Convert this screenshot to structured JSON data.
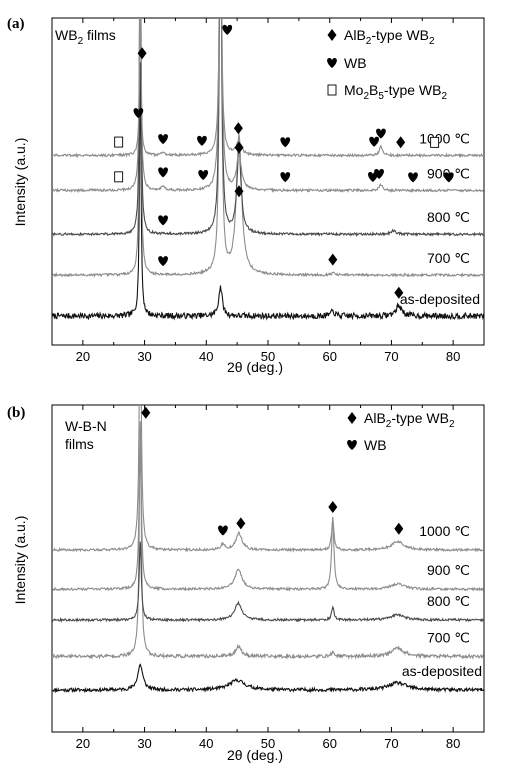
{
  "chart_data": [
    {
      "type": "line",
      "panel_label": "(a)",
      "sample_label": "WB₂ films",
      "xlabel": "2θ (deg.)",
      "ylabel": "Intensity (a.u.)",
      "xlim": [
        15,
        85
      ],
      "xticks": [
        20,
        30,
        40,
        50,
        60,
        70,
        80
      ],
      "tick_labels": [
        "20",
        "30",
        "40",
        "50",
        "60",
        "70",
        "80"
      ],
      "legend_position": "top-right",
      "legend": [
        {
          "marker": "diamond",
          "label": "AlB₂-type WB₂"
        },
        {
          "marker": "heart",
          "label": "WB"
        },
        {
          "marker": "open-square",
          "label": "Mo₂B₅-type WB₂"
        }
      ],
      "series": [
        {
          "name": "as-deposited",
          "color": "#111111",
          "baseline": 0.0,
          "noise": 0.01,
          "peaks": [
            {
              "x": 29.3,
              "h": 0.86,
              "w": 0.15
            },
            {
              "x": 42.3,
              "h": 0.1,
              "w": 0.35
            },
            {
              "x": 60.5,
              "h": 0.015,
              "w": 0.4
            },
            {
              "x": 71.2,
              "h": 0.035,
              "w": 0.6
            }
          ],
          "markers": [
            {
              "type": "diamond",
              "x": 71.2
            }
          ]
        },
        {
          "name": "700 ℃",
          "color": "#8c8c8c",
          "baseline": 0.14,
          "noise": 0.004,
          "peaks": [
            {
              "x": 29.3,
              "h": 1.2,
              "w": 0.15
            },
            {
              "x": 42.3,
              "h": 1.3,
              "w": 0.22
            },
            {
              "x": 45.3,
              "h": 0.48,
              "w": 0.5
            },
            {
              "x": 60.5,
              "h": 0.008,
              "w": 0.3
            }
          ],
          "markers": [
            {
              "type": "heart",
              "x": 33.0
            },
            {
              "type": "diamond",
              "x": 60.5
            }
          ]
        },
        {
          "name": "800 ℃",
          "color": "#4a4a4a",
          "baseline": 0.28,
          "noise": 0.004,
          "peaks": [
            {
              "x": 29.3,
              "h": 1.1,
              "w": 0.15
            },
            {
              "x": 42.3,
              "h": 1.2,
              "w": 0.22
            },
            {
              "x": 45.3,
              "h": 0.29,
              "w": 0.4
            },
            {
              "x": 70.3,
              "h": 0.012,
              "w": 0.5
            }
          ],
          "markers": [
            {
              "type": "heart",
              "x": 33.0
            },
            {
              "type": "diamond",
              "x": 45.3
            }
          ]
        },
        {
          "name": "900 ℃",
          "color": "#8c8c8c",
          "baseline": 0.43,
          "noise": 0.004,
          "peaks": [
            {
              "x": 29.3,
              "h": 0.95,
              "w": 0.15
            },
            {
              "x": 33.0,
              "h": 0.015,
              "w": 0.3
            },
            {
              "x": 42.3,
              "h": 1.2,
              "w": 0.22
            },
            {
              "x": 45.3,
              "h": 0.12,
              "w": 0.45
            },
            {
              "x": 68.3,
              "h": 0.02,
              "w": 0.35
            }
          ],
          "markers": [
            {
              "type": "square",
              "x": 25.8
            },
            {
              "type": "heart",
              "x": 33.0
            },
            {
              "type": "heart",
              "x": 39.5
            },
            {
              "type": "diamond",
              "x": 45.3
            },
            {
              "type": "heart",
              "x": 52.8
            },
            {
              "type": "heart",
              "x": 67.0
            },
            {
              "type": "heart",
              "x": 68.0
            },
            {
              "type": "heart",
              "x": 73.5
            },
            {
              "type": "heart",
              "x": 79.3
            }
          ]
        },
        {
          "name": "1000 ℃",
          "color": "#8c8c8c",
          "baseline": 0.55,
          "noise": 0.004,
          "peaks": [
            {
              "x": 29.3,
              "h": 0.5,
              "w": 0.15
            },
            {
              "x": 33.0,
              "h": 0.01,
              "w": 0.3
            },
            {
              "x": 42.3,
              "h": 0.9,
              "w": 0.22
            },
            {
              "x": 45.3,
              "h": 0.045,
              "w": 0.5
            },
            {
              "x": 68.3,
              "h": 0.03,
              "w": 0.3
            }
          ],
          "markers": [
            {
              "type": "square",
              "x": 25.8
            },
            {
              "type": "heart",
              "x": 29.0
            },
            {
              "type": "heart",
              "x": 33.0
            },
            {
              "type": "heart",
              "x": 39.3
            },
            {
              "type": "diamond",
              "x": 45.2
            },
            {
              "type": "heart",
              "x": 52.8
            },
            {
              "type": "heart",
              "x": 67.2
            },
            {
              "type": "heart",
              "x": 68.3
            },
            {
              "type": "diamond",
              "x": 71.5
            },
            {
              "type": "square",
              "x": 77.0
            }
          ]
        }
      ],
      "extra_markers": [
        {
          "type": "diamond",
          "x": 29.6,
          "level": 0.9
        },
        {
          "type": "heart",
          "x": 43.4,
          "level": 0.98
        }
      ]
    },
    {
      "type": "line",
      "panel_label": "(b)",
      "sample_label": [
        "W-B-N",
        "films"
      ],
      "xlabel": "2θ (deg.)",
      "ylabel": "Intensity (a.u.)",
      "xlim": [
        15,
        85
      ],
      "xticks": [
        20,
        30,
        40,
        50,
        60,
        70,
        80
      ],
      "tick_labels": [
        "20",
        "30",
        "40",
        "50",
        "60",
        "70",
        "80"
      ],
      "legend_position": "top-right",
      "legend": [
        {
          "marker": "diamond",
          "label": "AlB₂-type WB₂"
        },
        {
          "marker": "heart",
          "label": "WB"
        }
      ],
      "series": [
        {
          "name": "as-deposited",
          "color": "#111111",
          "baseline": 0.0,
          "noise": 0.006,
          "peaks": [
            {
              "x": 29.3,
              "h": 0.09,
              "w": 0.5
            },
            {
              "x": 45.0,
              "h": 0.035,
              "w": 1.5
            },
            {
              "x": 71.0,
              "h": 0.025,
              "w": 1.8
            }
          ],
          "markers": []
        },
        {
          "name": "700 ℃",
          "color": "#8c8c8c",
          "baseline": 0.12,
          "noise": 0.006,
          "peaks": [
            {
              "x": 29.3,
              "h": 0.8,
              "w": 0.2
            },
            {
              "x": 45.2,
              "h": 0.035,
              "w": 0.6
            },
            {
              "x": 60.5,
              "h": 0.015,
              "w": 0.3
            },
            {
              "x": 71.0,
              "h": 0.03,
              "w": 1.2
            }
          ],
          "markers": []
        },
        {
          "name": "800 ℃",
          "color": "#4a4a4a",
          "baseline": 0.25,
          "noise": 0.004,
          "peaks": [
            {
              "x": 29.3,
              "h": 0.28,
              "w": 0.2
            },
            {
              "x": 45.2,
              "h": 0.06,
              "w": 0.7
            },
            {
              "x": 60.5,
              "h": 0.05,
              "w": 0.22
            },
            {
              "x": 71.0,
              "h": 0.02,
              "w": 1.2
            }
          ],
          "markers": []
        },
        {
          "name": "900 ℃",
          "color": "#8c8c8c",
          "baseline": 0.36,
          "noise": 0.004,
          "peaks": [
            {
              "x": 29.3,
              "h": 0.6,
              "w": 0.2
            },
            {
              "x": 45.2,
              "h": 0.07,
              "w": 0.7
            },
            {
              "x": 60.5,
              "h": 0.26,
              "w": 0.22
            },
            {
              "x": 71.0,
              "h": 0.02,
              "w": 1.2
            }
          ],
          "markers": []
        },
        {
          "name": "1000 ℃",
          "color": "#8c8c8c",
          "baseline": 0.5,
          "noise": 0.004,
          "peaks": [
            {
              "x": 29.3,
              "h": 0.9,
              "w": 0.2
            },
            {
              "x": 42.7,
              "h": 0.02,
              "w": 0.4
            },
            {
              "x": 45.3,
              "h": 0.06,
              "w": 0.6
            },
            {
              "x": 60.5,
              "h": 0.11,
              "w": 0.22
            },
            {
              "x": 71.0,
              "h": 0.03,
              "w": 1.2
            }
          ],
          "markers": [
            {
              "type": "heart",
              "x": 42.7
            },
            {
              "type": "diamond",
              "x": 45.6
            },
            {
              "type": "diamond",
              "x": 60.5
            },
            {
              "type": "diamond",
              "x": 71.2
            }
          ]
        }
      ],
      "extra_markers": [
        {
          "type": "diamond",
          "x": 30.2,
          "level": 0.99
        }
      ]
    }
  ]
}
